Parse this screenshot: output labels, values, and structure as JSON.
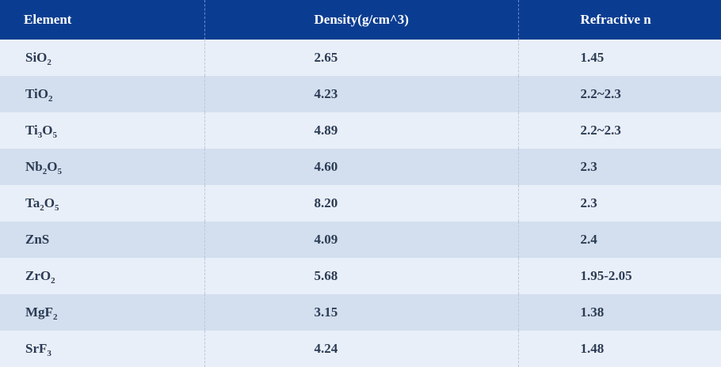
{
  "table": {
    "headers": [
      "Element",
      "Density(g/cm^3)",
      "Refractive n"
    ],
    "rows": [
      {
        "element": [
          {
            "t": "SiO"
          },
          {
            "sub": "2"
          }
        ],
        "density": "2.65",
        "refractive": "1.45"
      },
      {
        "element": [
          {
            "t": "TiO"
          },
          {
            "sub": "2"
          }
        ],
        "density": "4.23",
        "refractive": "2.2~2.3"
      },
      {
        "element": [
          {
            "t": "Ti"
          },
          {
            "sub": "3"
          },
          {
            "t": "O"
          },
          {
            "sub": "5"
          }
        ],
        "density": "4.89",
        "refractive": "2.2~2.3"
      },
      {
        "element": [
          {
            "t": "Nb"
          },
          {
            "sub": "2"
          },
          {
            "t": "O"
          },
          {
            "sub": "5"
          }
        ],
        "density": "4.60",
        "refractive": "2.3"
      },
      {
        "element": [
          {
            "t": "Ta"
          },
          {
            "sub": "2"
          },
          {
            "t": "O"
          },
          {
            "sub": "5"
          }
        ],
        "density": "8.20",
        "refractive": "2.3"
      },
      {
        "element": [
          {
            "t": "ZnS"
          }
        ],
        "density": "4.09",
        "refractive": "2.4"
      },
      {
        "element": [
          {
            "t": "ZrO"
          },
          {
            "sub": "2"
          }
        ],
        "density": "5.68",
        "refractive": "1.95-2.05"
      },
      {
        "element": [
          {
            "t": "MgF"
          },
          {
            "sub": "2"
          }
        ],
        "density": "3.15",
        "refractive": "1.38"
      },
      {
        "element": [
          {
            "t": "SrF"
          },
          {
            "sub": "3"
          }
        ],
        "density": "4.24",
        "refractive": "1.48"
      }
    ]
  },
  "colors": {
    "header_bg": "#0a3d91",
    "row_odd": "#e9eff8",
    "row_even": "#d3dfee",
    "text": "#2b3b54"
  }
}
